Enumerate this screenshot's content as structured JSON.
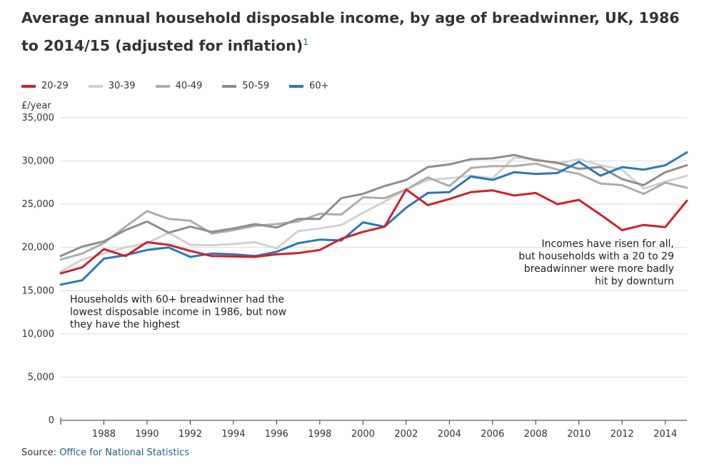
{
  "title": "Average annual household disposable income, by age of breadwinner, UK, 1986 to 2014/15 (adjusted for inflation)",
  "footnote_marker": "1",
  "source": {
    "label": "Source:",
    "link_text": "Office for National Statistics"
  },
  "chart_data": {
    "type": "line",
    "ylabel": "£/year",
    "ylim": [
      0,
      35000
    ],
    "yticks": [
      0,
      5000,
      10000,
      15000,
      20000,
      25000,
      30000,
      35000
    ],
    "ytick_labels": [
      "0",
      "5,000",
      "10,000",
      "15,000",
      "20,000",
      "25,000",
      "30,000",
      "35,000"
    ],
    "xlim": [
      1986,
      2015
    ],
    "xticks": [
      1988,
      1990,
      1992,
      1994,
      1996,
      1998,
      2000,
      2002,
      2004,
      2006,
      2008,
      2010,
      2012,
      2014
    ],
    "x": [
      1986,
      1987,
      1988,
      1989,
      1990,
      1991,
      1992,
      1993,
      1994,
      1995,
      1996,
      1997,
      1998,
      1999,
      2000,
      2001,
      2002,
      2003,
      2004,
      2005,
      2006,
      2007,
      2008,
      2009,
      2010,
      2011,
      2012,
      2013,
      2014,
      2015
    ],
    "series": [
      {
        "name": "20-29",
        "color": "#d0202a",
        "values": [
          17000,
          17700,
          19800,
          19000,
          20600,
          20300,
          19600,
          19000,
          18950,
          18900,
          19200,
          19350,
          19700,
          21000,
          21800,
          22400,
          26700,
          24900,
          25600,
          26400,
          26600,
          26000,
          26300,
          25000,
          25500,
          23800,
          22000,
          22600,
          22350,
          25400
        ]
      },
      {
        "name": "30-39",
        "color": "#d2d2d2",
        "values": [
          17200,
          18600,
          19300,
          20000,
          20500,
          21700,
          20300,
          20250,
          20400,
          20600,
          19900,
          21900,
          22200,
          22600,
          24000,
          25300,
          26700,
          27800,
          28000,
          28300,
          28000,
          30400,
          30200,
          29700,
          30200,
          29500,
          29000,
          26800,
          27600,
          28300
        ]
      },
      {
        "name": "40-49",
        "color": "#adadad",
        "values": [
          18600,
          19300,
          20500,
          22400,
          24200,
          23300,
          23100,
          21600,
          22000,
          22500,
          22700,
          23000,
          23900,
          23800,
          25800,
          25700,
          26700,
          28100,
          27100,
          29200,
          29400,
          29400,
          29700,
          29000,
          28500,
          27400,
          27200,
          26200,
          27500,
          26900
        ]
      },
      {
        "name": "50-59",
        "color": "#8e8e8e",
        "values": [
          19000,
          20100,
          20700,
          22000,
          23000,
          21700,
          22400,
          21800,
          22200,
          22700,
          22300,
          23300,
          23300,
          25700,
          26200,
          27100,
          27800,
          29300,
          29600,
          30200,
          30300,
          30700,
          30100,
          29800,
          29100,
          29300,
          27900,
          27200,
          28700,
          29500
        ]
      },
      {
        "name": "60+",
        "color": "#2b77b8",
        "values": [
          15700,
          16200,
          18700,
          19100,
          19700,
          20000,
          18900,
          19300,
          19200,
          19000,
          19500,
          20500,
          20900,
          20800,
          22900,
          22400,
          24600,
          26300,
          26400,
          28200,
          27800,
          28700,
          28500,
          28600,
          29900,
          28300,
          29300,
          29000,
          29500,
          31000
        ]
      }
    ],
    "annotations": [
      {
        "id": "oldest",
        "lines": [
          "Households with 60+ breadwinner had the",
          "lowest disposable income in 1986, but now",
          "they have the highest"
        ]
      },
      {
        "id": "youngest",
        "lines": [
          "Incomes have risen for all,",
          "but households with a 20 to 29",
          "breadwinner were more badly",
          "hit by downturn"
        ]
      }
    ]
  }
}
